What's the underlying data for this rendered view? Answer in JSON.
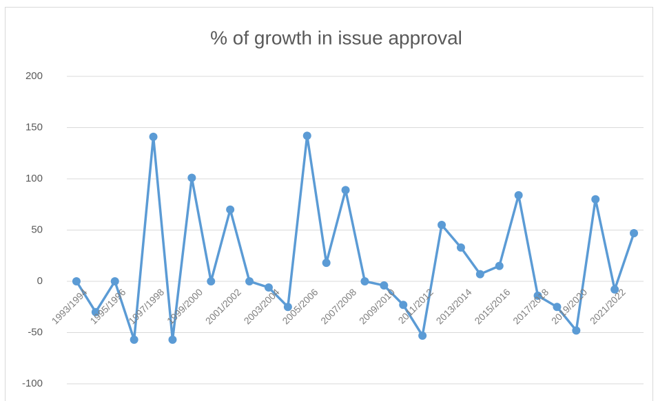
{
  "chart_data": {
    "type": "line",
    "title": "% of growth in issue approval",
    "categories": [
      "1993/1994",
      null,
      "1995/1996",
      null,
      "1997/1998",
      null,
      "1999/2000",
      null,
      "2001/2002",
      null,
      "2003/2004",
      null,
      "2005/2006",
      null,
      "2007/2008",
      null,
      "2009/2010",
      null,
      "2011/2012",
      null,
      "2013/2014",
      null,
      "2015/2016",
      null,
      "2017/2018",
      null,
      "2019/2020",
      null,
      "2021/2022",
      null
    ],
    "series": [
      {
        "name": "% of growth",
        "color": "#5b9bd5",
        "values": [
          0,
          -30,
          0,
          -57,
          141,
          -57,
          101,
          0,
          70,
          0,
          -6,
          -25,
          142,
          18,
          89,
          0,
          -4,
          -23,
          -53,
          55,
          33,
          7,
          15,
          84,
          -14,
          -25,
          -48,
          80,
          -8,
          47
        ]
      }
    ],
    "ylim": [
      -100,
      200
    ],
    "yticks": [
      -100,
      -50,
      0,
      50,
      100,
      150,
      200
    ],
    "grid": true
  }
}
